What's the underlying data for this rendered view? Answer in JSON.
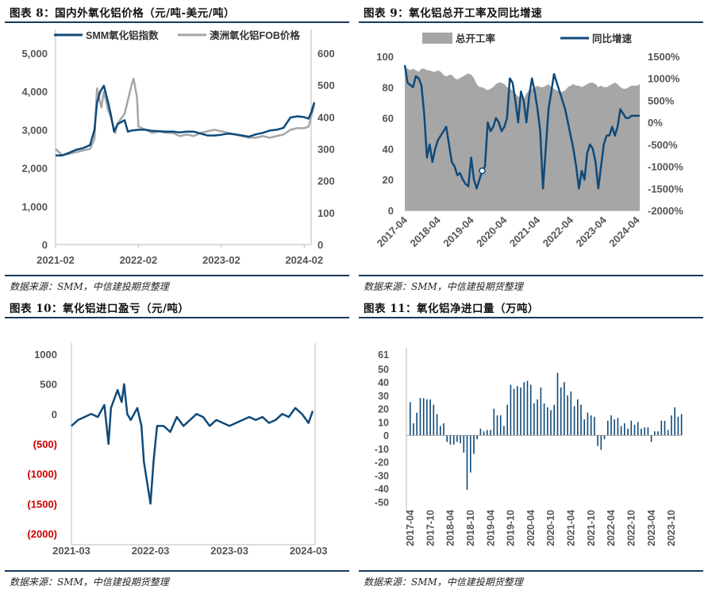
{
  "sources": "数据来源：SMM，中信建投期货整理",
  "chart_data": [
    {
      "type": "line",
      "title": "图表 8：国内外氧化铝价格（元/吨-美元/吨）",
      "x_ticks": [
        "2021-02",
        "2022-02",
        "2023-02",
        "2024-02"
      ],
      "x_range": [
        "2021-02",
        "2024-03"
      ],
      "ylim": [
        0,
        5000
      ],
      "y_ticks": [
        "0",
        "1,000",
        "2,000",
        "3,000",
        "4,000",
        "5,000"
      ],
      "y2lim": [
        0,
        600
      ],
      "y2_ticks": [
        "0",
        "100",
        "200",
        "300",
        "400",
        "500",
        "600"
      ],
      "legend": "top",
      "series": [
        {
          "name": "SMM氧化铝指数",
          "axis": "left",
          "color": "#0f4a7a",
          "points": [
            [
              "2021-02",
              2330
            ],
            [
              "2021-03",
              2330
            ],
            [
              "2021-04",
              2400
            ],
            [
              "2021-05",
              2480
            ],
            [
              "2021-06",
              2520
            ],
            [
              "2021-07",
              2600
            ],
            [
              "2021-07-20",
              3000
            ],
            [
              "2021-08",
              3700
            ],
            [
              "2021-08-15",
              4000
            ],
            [
              "2021-09",
              4150
            ],
            [
              "2021-09-20",
              3700
            ],
            [
              "2021-10",
              3400
            ],
            [
              "2021-10-15",
              2950
            ],
            [
              "2021-11",
              3150
            ],
            [
              "2021-12",
              3250
            ],
            [
              "2021-12-15",
              2950
            ],
            [
              "2022-01",
              2980
            ],
            [
              "2022-02",
              3000
            ],
            [
              "2022-03",
              3000
            ],
            [
              "2022-04",
              2970
            ],
            [
              "2022-05",
              2960
            ],
            [
              "2022-06",
              2950
            ],
            [
              "2022-07",
              2950
            ],
            [
              "2022-08",
              2930
            ],
            [
              "2022-09",
              2950
            ],
            [
              "2022-10",
              2950
            ],
            [
              "2022-11",
              2900
            ],
            [
              "2022-12",
              2850
            ],
            [
              "2023-01",
              2850
            ],
            [
              "2023-02",
              2870
            ],
            [
              "2023-03",
              2900
            ],
            [
              "2023-04",
              2880
            ],
            [
              "2023-05",
              2850
            ],
            [
              "2023-06",
              2820
            ],
            [
              "2023-07",
              2880
            ],
            [
              "2023-08",
              2920
            ],
            [
              "2023-09",
              2980
            ],
            [
              "2023-10",
              3000
            ],
            [
              "2023-11",
              3050
            ],
            [
              "2023-12",
              3320
            ],
            [
              "2024-01",
              3350
            ],
            [
              "2024-02",
              3330
            ],
            [
              "2024-02-20",
              3290
            ],
            [
              "2024-03",
              3450
            ],
            [
              "2024-03-15",
              3720
            ]
          ]
        },
        {
          "name": "澳洲氧化铝FOB价格",
          "axis": "right",
          "color": "#a6a6a6",
          "points": [
            [
              "2021-02",
              300
            ],
            [
              "2021-02-15",
              290
            ],
            [
              "2021-03",
              280
            ],
            [
              "2021-04",
              285
            ],
            [
              "2021-05",
              290
            ],
            [
              "2021-06",
              295
            ],
            [
              "2021-07",
              300
            ],
            [
              "2021-07-20",
              330
            ],
            [
              "2021-08",
              490
            ],
            [
              "2021-08-20",
              430
            ],
            [
              "2021-09",
              480
            ],
            [
              "2021-09-20",
              420
            ],
            [
              "2021-10",
              400
            ],
            [
              "2021-10-20",
              350
            ],
            [
              "2021-11",
              380
            ],
            [
              "2021-12",
              410
            ],
            [
              "2022-01",
              500
            ],
            [
              "2022-01-10",
              520
            ],
            [
              "2022-01-25",
              460
            ],
            [
              "2022-02",
              370
            ],
            [
              "2022-03",
              360
            ],
            [
              "2022-04",
              350
            ],
            [
              "2022-05",
              355
            ],
            [
              "2022-06",
              350
            ],
            [
              "2022-07",
              350
            ],
            [
              "2022-08",
              340
            ],
            [
              "2022-09",
              345
            ],
            [
              "2022-10",
              340
            ],
            [
              "2022-11",
              350
            ],
            [
              "2022-12",
              355
            ],
            [
              "2023-01",
              360
            ],
            [
              "2023-02",
              355
            ],
            [
              "2023-03",
              350
            ],
            [
              "2023-04",
              345
            ],
            [
              "2023-05",
              340
            ],
            [
              "2023-06",
              335
            ],
            [
              "2023-07",
              335
            ],
            [
              "2023-08",
              340
            ],
            [
              "2023-09",
              335
            ],
            [
              "2023-10",
              340
            ],
            [
              "2023-11",
              345
            ],
            [
              "2023-12",
              360
            ],
            [
              "2024-01",
              365
            ],
            [
              "2024-02",
              365
            ],
            [
              "2024-02-20",
              370
            ],
            [
              "2024-03",
              400
            ],
            [
              "2024-03-15",
              440
            ]
          ]
        }
      ]
    },
    {
      "type": "bar+line",
      "title": "图表 9：氧化铝总开工率及同比增速",
      "x_ticks": [
        "2017-04",
        "2018-04",
        "2019-04",
        "2020-04",
        "2021-04",
        "2022-04",
        "2023-04",
        "2024-04"
      ],
      "ylim": [
        0,
        100
      ],
      "y_ticks": [
        "0",
        "20",
        "40",
        "60",
        "80",
        "100"
      ],
      "y2lim": [
        -2000,
        1500
      ],
      "y2_ticks": [
        "-2000%",
        "-1500%",
        "-1000%",
        "-500%",
        "0%",
        "500%",
        "1000%",
        "1500%"
      ],
      "legend": "top",
      "series": [
        {
          "name": "总开工率",
          "axis": "left",
          "kind": "area",
          "color": "#a6a6a6",
          "values": [
            93,
            92,
            91,
            92,
            91,
            90,
            92,
            92,
            91,
            91,
            90,
            90,
            91,
            90,
            88,
            87,
            88,
            88,
            86,
            85,
            86,
            87,
            88,
            89,
            88,
            86,
            82,
            80,
            80,
            79,
            78,
            79,
            80,
            82,
            83,
            83,
            82,
            80,
            79,
            78,
            76,
            74,
            73,
            72,
            76,
            78,
            79,
            80,
            81,
            80,
            80,
            81,
            82,
            80,
            79,
            78,
            77,
            77,
            78,
            80,
            81,
            82,
            81,
            81,
            80,
            81,
            82,
            83,
            83,
            82,
            80,
            81,
            80,
            80,
            81,
            82,
            83,
            82,
            80,
            79,
            79,
            80,
            81,
            81,
            81,
            82
          ]
        },
        {
          "name": "同比增速",
          "axis": "right",
          "kind": "line",
          "color": "#0f4a7a",
          "values": [
            1300,
            900,
            850,
            800,
            1050,
            1000,
            850,
            200,
            -800,
            -500,
            -900,
            -600,
            -400,
            -300,
            -200,
            -100,
            -500,
            -900,
            -1000,
            -1200,
            -1150,
            -1300,
            -1400,
            -1450,
            -800,
            -1300,
            -1500,
            -1300,
            -1100,
            -1000,
            0,
            -200,
            -100,
            100,
            0,
            -200,
            -100,
            100,
            1000,
            900,
            500,
            0,
            700,
            500,
            0,
            600,
            1000,
            700,
            300,
            -200,
            -1500,
            -600,
            300,
            700,
            1100,
            900,
            700,
            500,
            300,
            0,
            -300,
            -600,
            -1000,
            -1500,
            -1100,
            -1300,
            -700,
            -500,
            -600,
            -900,
            -1500,
            -1000,
            -500,
            -300,
            -300,
            -100,
            -300,
            -100,
            300,
            200,
            100,
            100,
            150,
            150,
            150,
            150
          ]
        }
      ],
      "annotation": {
        "label": "2020-01 marker",
        "point_index": 28
      }
    },
    {
      "type": "line",
      "title": "图表 10：氧化铝进口盈亏（元/吨）",
      "x_ticks": [
        "2021-03",
        "2022-03",
        "2023-03",
        "2024-03"
      ],
      "x_range": [
        "2021-03",
        "2024-04"
      ],
      "ylim": [
        -2000,
        1000
      ],
      "y_ticks": [
        "(2000)",
        "(1500)",
        "(1000)",
        "(500)",
        "0",
        "500",
        "1000"
      ],
      "negative_tick_color": "#cc0000",
      "series": [
        {
          "name": "氧化铝进口盈亏",
          "color": "#0f4a7a",
          "points": [
            [
              "2021-03",
              -200
            ],
            [
              "2021-04",
              -100
            ],
            [
              "2021-05",
              -50
            ],
            [
              "2021-06",
              0
            ],
            [
              "2021-07",
              -50
            ],
            [
              "2021-08",
              150
            ],
            [
              "2021-08-20",
              -500
            ],
            [
              "2021-09",
              100
            ],
            [
              "2021-10",
              400
            ],
            [
              "2021-10-20",
              200
            ],
            [
              "2021-11",
              500
            ],
            [
              "2021-11-15",
              0
            ],
            [
              "2021-12",
              -100
            ],
            [
              "2022-01",
              100
            ],
            [
              "2022-01-20",
              -200
            ],
            [
              "2022-02",
              -800
            ],
            [
              "2022-03",
              -1500
            ],
            [
              "2022-03-15",
              -800
            ],
            [
              "2022-04",
              -200
            ],
            [
              "2022-05",
              -200
            ],
            [
              "2022-06",
              -300
            ],
            [
              "2022-07",
              -50
            ],
            [
              "2022-08",
              -200
            ],
            [
              "2022-09",
              -100
            ],
            [
              "2022-10",
              0
            ],
            [
              "2022-11",
              -50
            ],
            [
              "2022-12",
              -200
            ],
            [
              "2023-01",
              -100
            ],
            [
              "2023-02",
              -150
            ],
            [
              "2023-03",
              -200
            ],
            [
              "2023-04",
              -150
            ],
            [
              "2023-05",
              -100
            ],
            [
              "2023-06",
              -50
            ],
            [
              "2023-07",
              -100
            ],
            [
              "2023-08",
              -50
            ],
            [
              "2023-09",
              -150
            ],
            [
              "2023-10",
              -100
            ],
            [
              "2023-11",
              0
            ],
            [
              "2023-12",
              -50
            ],
            [
              "2024-01",
              100
            ],
            [
              "2024-02",
              0
            ],
            [
              "2024-03",
              -150
            ],
            [
              "2024-03-20",
              50
            ]
          ]
        }
      ]
    },
    {
      "type": "bar",
      "title": "图表 11：氧化铝净进口量（万吨）",
      "x_ticks": [
        "2017-04",
        "2017-10",
        "2018-04",
        "2018-10",
        "2019-04",
        "2019-10",
        "2020-04",
        "2020-10",
        "2021-04",
        "2021-10",
        "2022-04",
        "2022-10",
        "2023-04",
        "2023-10"
      ],
      "ylim": [
        -50,
        61
      ],
      "y_ticks": [
        "-50",
        "-40",
        "-30",
        "-20",
        "-10",
        "0",
        "10",
        "20",
        "30",
        "40",
        "50",
        "61"
      ],
      "series": [
        {
          "name": "氧化铝净进口量",
          "color": "#0f4a7a",
          "values": [
            25,
            9,
            17,
            28,
            28,
            27,
            27,
            23,
            16,
            7,
            9,
            -5,
            -7,
            -7,
            -5,
            -6,
            -13,
            -41,
            -28,
            -14,
            -3,
            5,
            3,
            4,
            4,
            20,
            15,
            15,
            7,
            23,
            38,
            35,
            37,
            36,
            40,
            41,
            38,
            24,
            27,
            36,
            24,
            21,
            19,
            23,
            47,
            36,
            40,
            30,
            33,
            22,
            27,
            23,
            12,
            17,
            15,
            14,
            -8,
            -11,
            -3,
            11,
            15,
            12,
            13,
            7,
            9,
            5,
            11,
            8,
            10,
            5,
            6,
            6,
            -5,
            3,
            3,
            11,
            11,
            4,
            15,
            21,
            14,
            16
          ]
        }
      ]
    }
  ]
}
